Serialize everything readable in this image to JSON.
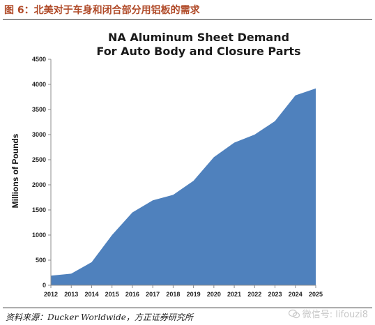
{
  "figure": {
    "caption": "图 6：北美对于车身和闭合部分用铝板的需求",
    "source": "资料来源：Ducker Worldwide，方正证券研究所",
    "watermark": "微信号: lifouzi8"
  },
  "chart_data": {
    "type": "area",
    "title_lines": [
      "NA Aluminum Sheet Demand",
      "For Auto Body and Closure Parts"
    ],
    "xlabel": "",
    "ylabel": "Millions of Pounds",
    "x": [
      2012,
      2013,
      2014,
      2015,
      2016,
      2017,
      2018,
      2019,
      2020,
      2021,
      2022,
      2023,
      2024,
      2025
    ],
    "series": [
      {
        "values": [
          190,
          230,
          460,
          1000,
          1450,
          1690,
          1800,
          2080,
          2550,
          2840,
          3000,
          3270,
          3780,
          3920
        ]
      }
    ],
    "ylim": [
      0,
      4500
    ],
    "yticks": [
      0,
      500,
      1000,
      1500,
      2000,
      2500,
      3000,
      3500,
      4000,
      4500
    ],
    "fill_color": "#4f81bd",
    "grid": false,
    "legend": "none"
  }
}
